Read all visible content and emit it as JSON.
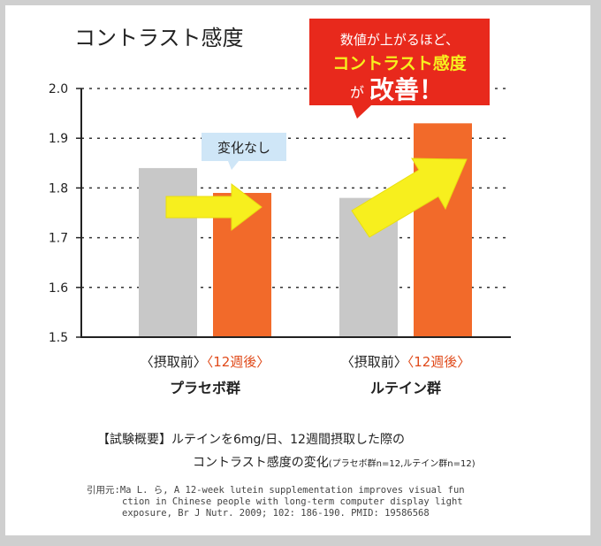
{
  "chart_data": {
    "type": "bar",
    "title": "コントラスト感度",
    "ylim": [
      1.5,
      2.0
    ],
    "yticks": [
      "1.5",
      "1.6",
      "1.7",
      "1.8",
      "1.9",
      "2.0"
    ],
    "grid": "dashed-horizontal",
    "groups": [
      {
        "name": "プラセボ群",
        "before_label": "〈摂取前〉",
        "after_label": "〈12週後〉",
        "before": 1.84,
        "after": 1.79
      },
      {
        "name": "ルテイン群",
        "before_label": "〈摂取前〉",
        "after_label": "〈12週後〉",
        "before": 1.78,
        "after": 1.93
      }
    ],
    "colors": {
      "before": "#c8c8c8",
      "after": "#f26a2a",
      "after_label": "#e04a1a",
      "arrow": "#f7ef1e",
      "callout_red": "#e8291c",
      "callout_blue": "#cfe6f7"
    },
    "annotations": {
      "no_change": "変化なし",
      "improve_line1": "数値が上がるほど、",
      "improve_line2": "コントラスト感度",
      "improve_line3_small": "が",
      "improve_line3_big": "改善！"
    }
  },
  "caption": {
    "line1": "【試験概要】ルテインを6mg/日、12週間摂取した際の",
    "line2": "コントラスト感度の変化",
    "line2_small": "(プラセボ群n=12,ルテイン群n=12)"
  },
  "citation": {
    "line1": "引用元:Ma L. ら, A 12-week lutein supplementation improves visual fun",
    "line2": "ction in Chinese people with long-term computer display light",
    "line3": "exposure,  Br J Nutr. 2009; 102: 186-190. PMID: 19586568"
  }
}
